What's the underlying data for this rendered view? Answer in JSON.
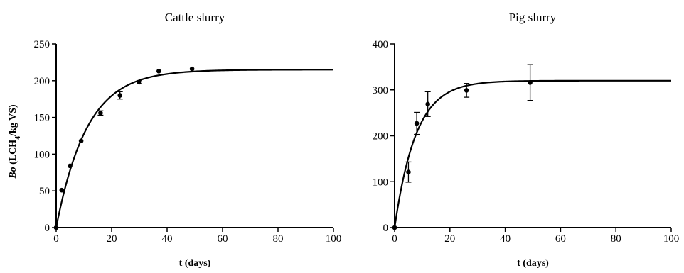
{
  "chart_data": [
    {
      "type": "scatter",
      "title": "Cattle slurry",
      "xlabel": "t (days)",
      "ylabel": {
        "italic": "Bo",
        "prefix": " (LCH",
        "sub": "4",
        "suffix": "/kg VS)"
      },
      "xlim": [
        0,
        100
      ],
      "ylim": [
        0,
        250
      ],
      "xticks": [
        0,
        20,
        40,
        60,
        80,
        100
      ],
      "yticks": [
        0,
        50,
        100,
        150,
        200,
        250
      ],
      "grid": false,
      "legend": "none",
      "points": [
        {
          "x": 0,
          "y": 0,
          "err": 0
        },
        {
          "x": 2,
          "y": 51,
          "err": 0
        },
        {
          "x": 5,
          "y": 84,
          "err": 0
        },
        {
          "x": 9,
          "y": 118,
          "err": 0
        },
        {
          "x": 16,
          "y": 156,
          "err": 3
        },
        {
          "x": 23,
          "y": 180,
          "err": 5
        },
        {
          "x": 30,
          "y": 198,
          "err": 2
        },
        {
          "x": 37,
          "y": 213,
          "err": 0
        },
        {
          "x": 49,
          "y": 216,
          "err": 0
        }
      ],
      "fit": {
        "model": "first-order",
        "B0": 215,
        "k": 0.09
      }
    },
    {
      "type": "scatter",
      "title": "Pig slurry",
      "xlabel": "t (days)",
      "ylabel": null,
      "xlim": [
        0,
        100
      ],
      "ylim": [
        0,
        400
      ],
      "xticks": [
        0,
        20,
        40,
        60,
        80,
        100
      ],
      "yticks": [
        0,
        100,
        200,
        300,
        400
      ],
      "grid": false,
      "legend": "none",
      "points": [
        {
          "x": 0,
          "y": 0,
          "err": 0
        },
        {
          "x": 5,
          "y": 121,
          "err": 22
        },
        {
          "x": 8,
          "y": 227,
          "err": 24
        },
        {
          "x": 12,
          "y": 269,
          "err": 27
        },
        {
          "x": 26,
          "y": 299,
          "err": 15
        },
        {
          "x": 49,
          "y": 316,
          "err": 39
        }
      ],
      "fit": {
        "model": "first-order",
        "B0": 320,
        "k": 0.13
      }
    }
  ]
}
